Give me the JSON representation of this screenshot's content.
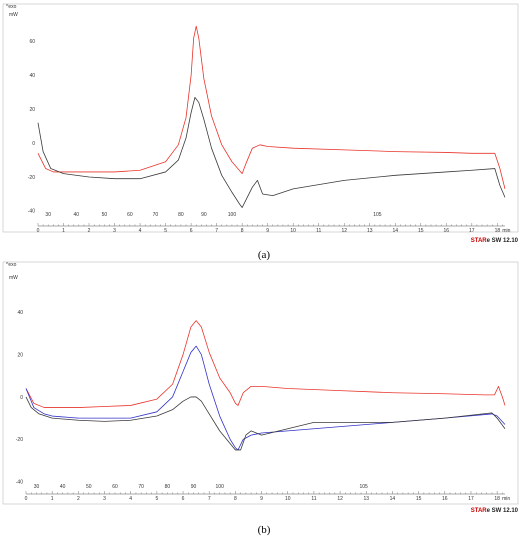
{
  "chart_data": [
    {
      "panel": "a",
      "type": "line",
      "caption": "(a)",
      "ylabel": "mW",
      "exo_label": "^exo",
      "software_brand": "STAR",
      "software_rest": "e SW 12.10",
      "y_ticks": [
        60,
        40,
        20,
        0,
        -20,
        -40
      ],
      "ylim": [
        -43,
        75
      ],
      "xlim": [
        0,
        18.3
      ],
      "x_ticks": [
        0,
        1,
        2,
        3,
        4,
        5,
        6,
        7,
        8,
        9,
        10,
        11,
        12,
        13,
        14,
        15,
        16,
        17,
        18
      ],
      "x_unit": "min",
      "temp_ticks": [
        {
          "t": 0.4,
          "label": "30"
        },
        {
          "t": 1.5,
          "label": "40"
        },
        {
          "t": 2.6,
          "label": "50"
        },
        {
          "t": 3.6,
          "label": "60"
        },
        {
          "t": 4.6,
          "label": "70"
        },
        {
          "t": 5.6,
          "label": "80"
        },
        {
          "t": 6.5,
          "label": "90"
        },
        {
          "t": 7.6,
          "label": "100"
        },
        {
          "t": 13.3,
          "label": "105"
        }
      ],
      "series": [
        {
          "color": "#e8342a",
          "x": [
            0,
            0.3,
            0.6,
            1,
            2,
            3,
            4,
            5,
            5.5,
            5.8,
            6.0,
            6.1,
            6.2,
            6.3,
            6.5,
            6.8,
            7.2,
            7.6,
            8.0,
            8.15,
            8.4,
            8.7,
            9,
            10,
            12,
            14,
            16,
            17,
            17.9,
            18.1,
            18.3
          ],
          "y": [
            -6,
            -15,
            -17,
            -17,
            -17,
            -17,
            -16,
            -11,
            -1,
            15,
            40,
            62,
            69,
            62,
            38,
            16,
            -1,
            -11,
            -18,
            -12,
            -3,
            -1,
            -2,
            -3,
            -4,
            -5,
            -5.5,
            -6,
            -6,
            -15,
            -27
          ]
        },
        {
          "color": "#3a3a3a",
          "x": [
            0,
            0.2,
            0.5,
            1,
            2,
            3,
            4,
            5,
            5.5,
            5.8,
            6.0,
            6.15,
            6.3,
            6.5,
            6.8,
            7.2,
            7.6,
            7.9,
            8.0,
            8.2,
            8.4,
            8.6,
            8.8,
            9.2,
            10,
            12,
            14,
            16,
            17,
            17.9,
            18.1,
            18.3
          ],
          "y": [
            12,
            -5,
            -15,
            -18,
            -20,
            -21,
            -21,
            -17,
            -10,
            3,
            18,
            27,
            24,
            14,
            -3,
            -19,
            -29,
            -36,
            -38,
            -32,
            -26,
            -22,
            -30,
            -31,
            -27,
            -22,
            -19,
            -17,
            -16,
            -15,
            -25,
            -32
          ]
        }
      ]
    },
    {
      "panel": "b",
      "type": "line",
      "caption": "(b)",
      "ylabel": "mW",
      "exo_label": "^exo",
      "software_brand": "STAR",
      "software_rest": "e SW 12.10",
      "y_ticks": [
        40,
        20,
        0,
        -20,
        -40
      ],
      "ylim": [
        -42,
        58
      ],
      "xlim": [
        0,
        18.3
      ],
      "x_ticks": [
        0,
        1,
        2,
        3,
        4,
        5,
        6,
        7,
        8,
        9,
        10,
        11,
        12,
        13,
        14,
        15,
        16,
        17,
        18
      ],
      "x_unit": "min",
      "temp_ticks": [
        {
          "t": 0.4,
          "label": "30"
        },
        {
          "t": 1.4,
          "label": "40"
        },
        {
          "t": 2.4,
          "label": "50"
        },
        {
          "t": 3.4,
          "label": "60"
        },
        {
          "t": 4.4,
          "label": "70"
        },
        {
          "t": 5.4,
          "label": "80"
        },
        {
          "t": 6.4,
          "label": "90"
        },
        {
          "t": 7.4,
          "label": "100"
        },
        {
          "t": 12.9,
          "label": "105"
        }
      ],
      "series": [
        {
          "color": "#e8342a",
          "x": [
            0,
            0.3,
            0.7,
            1,
            2,
            3,
            4,
            5,
            5.6,
            6.0,
            6.3,
            6.5,
            6.7,
            7.0,
            7.4,
            7.8,
            8.0,
            8.1,
            8.3,
            8.6,
            9,
            10,
            12,
            14,
            16,
            17.5,
            17.9,
            18.05,
            18.2,
            18.3
          ],
          "y": [
            4,
            -3,
            -5,
            -5,
            -5,
            -4.5,
            -4,
            -1,
            6,
            20,
            33,
            36,
            33,
            21,
            9,
            2,
            -3,
            -4,
            2,
            5,
            5,
            4,
            3,
            2,
            1.5,
            1,
            1,
            5,
            0,
            -4
          ]
        },
        {
          "color": "#3232c8",
          "x": [
            0,
            0.3,
            0.7,
            1,
            2,
            3,
            4,
            5,
            5.6,
            6.0,
            6.3,
            6.5,
            6.7,
            7.0,
            7.4,
            7.8,
            8.0,
            8.1,
            8.3,
            8.6,
            9,
            10,
            12,
            14,
            16,
            17.8,
            18.0,
            18.3
          ],
          "y": [
            4,
            -5,
            -8,
            -9,
            -10,
            -10,
            -10,
            -7,
            0,
            12,
            21,
            24,
            20,
            6,
            -9,
            -20,
            -24,
            -25,
            -20,
            -18,
            -17,
            -16,
            -14,
            -12,
            -10,
            -8,
            -9,
            -13
          ]
        },
        {
          "color": "#3a3a3a",
          "x": [
            0,
            0.2,
            0.5,
            1,
            2,
            3,
            4,
            5,
            5.6,
            6.0,
            6.3,
            6.5,
            6.7,
            7.0,
            7.4,
            7.8,
            8.0,
            8.2,
            8.4,
            8.6,
            9,
            10,
            11,
            12,
            14,
            16,
            17.8,
            18.0,
            18.3
          ],
          "y": [
            0,
            -5,
            -8,
            -10,
            -11,
            -11.5,
            -11,
            -9,
            -6,
            -2,
            0,
            0,
            -2,
            -8,
            -16,
            -22,
            -25,
            -25,
            -18,
            -16,
            -18,
            -15,
            -12,
            -12,
            -12,
            -10,
            -7.5,
            -10,
            -15
          ]
        }
      ]
    }
  ]
}
